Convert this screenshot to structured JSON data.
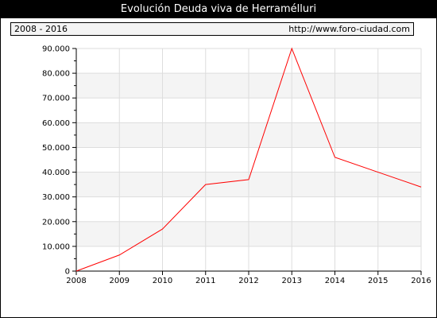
{
  "title": "Evolución Deuda viva de Herramélluri",
  "period": "2008 - 2016",
  "source_url": "http://www.foro-ciudad.com",
  "colors": {
    "line": "#ff0000",
    "band": "#f4f4f4",
    "grid": "#dddddd",
    "axis": "#000000"
  },
  "chart_data": {
    "type": "line",
    "title": "Evolución Deuda viva de Herramélluri",
    "xlabel": "",
    "ylabel": "",
    "grid": true,
    "x": [
      "2008",
      "2009",
      "2010",
      "2011",
      "2012",
      "2013",
      "2014",
      "2015",
      "2016"
    ],
    "series": [
      {
        "values": [
          0,
          6500,
          17000,
          35000,
          37000,
          90000,
          46000,
          40000,
          34000
        ]
      }
    ],
    "ylim": [
      0,
      90000
    ],
    "yticks": [
      0,
      10000,
      20000,
      30000,
      40000,
      50000,
      60000,
      70000,
      80000,
      90000
    ],
    "ytick_labels": [
      "0",
      "10.000",
      "20.000",
      "30.000",
      "40.000",
      "50.000",
      "60.000",
      "70.000",
      "80.000",
      "90.000"
    ]
  }
}
